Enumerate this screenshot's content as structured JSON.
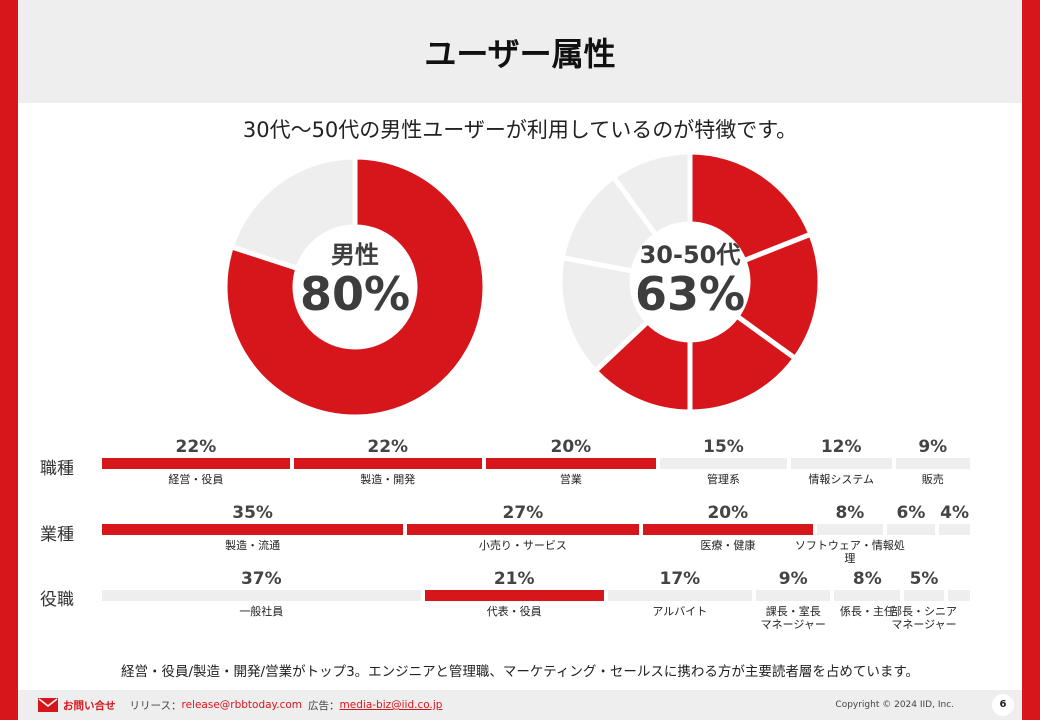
{
  "title": "ユーザー属性",
  "subtitle": "30代〜50代の男性ユーザーが利用しているのが特徴です。",
  "colors": {
    "accent": "#d7161b",
    "inactive": "#eeeeee"
  },
  "donuts": [
    {
      "label": "男性",
      "value_text": "80%",
      "segments": [
        {
          "value": 80,
          "highlight": true
        },
        {
          "value": 20,
          "highlight": false
        }
      ]
    },
    {
      "label": "30-50代",
      "value_text": "63%",
      "segments": [
        {
          "value": 19,
          "highlight": true
        },
        {
          "value": 16,
          "highlight": true
        },
        {
          "value": 15,
          "highlight": true
        },
        {
          "value": 13,
          "highlight": true
        },
        {
          "value": 15,
          "highlight": false
        },
        {
          "value": 12,
          "highlight": false
        },
        {
          "value": 10,
          "highlight": false
        }
      ]
    }
  ],
  "rows": [
    {
      "label": "職種",
      "items": [
        {
          "pct": "22%",
          "value": 22,
          "name": "経営・役員",
          "highlight": true
        },
        {
          "pct": "22%",
          "value": 22,
          "name": "製造・開発",
          "highlight": true
        },
        {
          "pct": "20%",
          "value": 20,
          "name": "営業",
          "highlight": true
        },
        {
          "pct": "15%",
          "value": 15,
          "name": "管理系",
          "highlight": false
        },
        {
          "pct": "12%",
          "value": 12,
          "name": "情報システム",
          "highlight": false
        },
        {
          "pct": "9%",
          "value": 9,
          "name": "販売",
          "highlight": false
        }
      ]
    },
    {
      "label": "業種",
      "items": [
        {
          "pct": "35%",
          "value": 35,
          "name": "製造・流通",
          "highlight": true
        },
        {
          "pct": "27%",
          "value": 27,
          "name": "小売り・サービス",
          "highlight": true
        },
        {
          "pct": "20%",
          "value": 20,
          "name": "医療・健康",
          "highlight": true
        },
        {
          "pct": "8%",
          "value": 8,
          "name": "ソフトウェア・情報処理",
          "highlight": false
        },
        {
          "pct": "6%",
          "value": 6,
          "name": "",
          "highlight": false
        },
        {
          "pct": "4%",
          "value": 4,
          "name": "",
          "highlight": false
        }
      ]
    },
    {
      "label": "役職",
      "items": [
        {
          "pct": "37%",
          "value": 37,
          "name": "一般社員",
          "highlight": false
        },
        {
          "pct": "21%",
          "value": 21,
          "name": "代表・役員",
          "highlight": true
        },
        {
          "pct": "17%",
          "value": 17,
          "name": "アルバイト",
          "highlight": false
        },
        {
          "pct": "9%",
          "value": 9,
          "name": "課長・室長\nマネージャー",
          "highlight": false
        },
        {
          "pct": "8%",
          "value": 8,
          "name": "係長・主任",
          "highlight": false
        },
        {
          "pct": "5%",
          "value": 5,
          "name": "部長・シニア\nマネージャー",
          "highlight": false
        },
        {
          "pct": "",
          "value": 3,
          "name": "",
          "highlight": false
        }
      ]
    }
  ],
  "summary": "経営・役員/製造・開発/営業がトップ3。エンジニアと管理職、マーケティング・セールスに携わる方が主要読者層を占めています。",
  "footer": {
    "contact": "お問い合せ",
    "release_label": "リリース：",
    "release_email": "release@rbbtoday.com",
    "ad_label": "広告：",
    "ad_email": "media-biz@iid.co.jp",
    "copyright": "Copyright © 2024 IID, Inc.",
    "page": "6"
  }
}
